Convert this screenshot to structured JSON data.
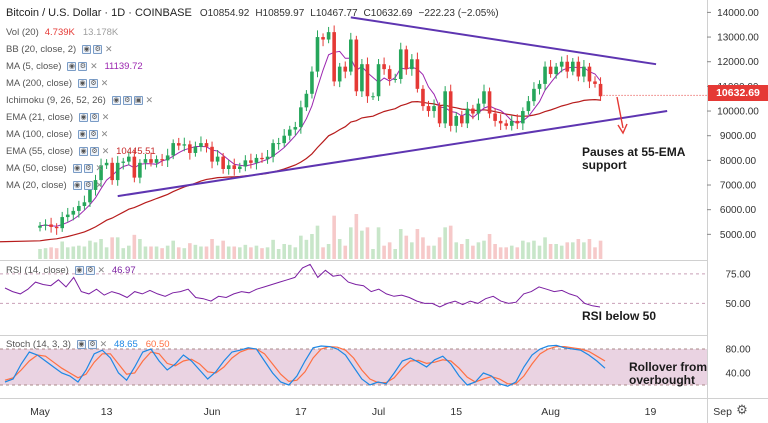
{
  "header": {
    "symbol": "Bitcoin / U.S. Dollar · 1D · COINBASE",
    "open": "O10854.92",
    "high": "H10859.97",
    "low": "L10467.77",
    "close": "C10632.69",
    "change": "−222.23 (−2.05%)"
  },
  "indicators": [
    {
      "name": "Vol (20)",
      "value": "4.739K",
      "value2": "13.178K",
      "color": "#e53935",
      "color2": "#9e9e9e",
      "icons": 0
    },
    {
      "name": "BB (20, close, 2)",
      "value": "",
      "color": "#555",
      "icons": 2
    },
    {
      "name": "MA (5, close)",
      "value": "11139.72",
      "color": "#9c27b0",
      "icons": 2
    },
    {
      "name": "MA (200, close)",
      "value": "",
      "color": "#555",
      "icons": 2
    },
    {
      "name": "Ichimoku (9, 26, 52, 26)",
      "value": "",
      "color": "#555",
      "icons": 3
    },
    {
      "name": "EMA (21, close)",
      "value": "",
      "color": "#555",
      "icons": 2
    },
    {
      "name": "MA (100, close)",
      "value": "",
      "color": "#555",
      "icons": 2
    },
    {
      "name": "EMA (55, close)",
      "value": "10445.51",
      "color": "#c62828",
      "icons": 2
    },
    {
      "name": "MA (50, close)",
      "value": "",
      "color": "#555",
      "icons": 2
    },
    {
      "name": "MA (20, close)",
      "value": "",
      "color": "#555",
      "icons": 2
    }
  ],
  "price_tag": "10632.69",
  "annotations": {
    "ema_note_line1": "Pauses at 55-EMA",
    "ema_note_line2": "support",
    "rsi_note": "RSI below 50",
    "stoch_note_line1": "Rollover from",
    "stoch_note_line2": "overbought"
  },
  "rsi": {
    "label": "RSI (14, close)",
    "value": "46.97",
    "color": "#7b1fa2"
  },
  "stoch": {
    "label": "Stoch (14, 3, 3)",
    "k_value": "48.65",
    "d_value": "60.50",
    "k_color": "#1e88e5",
    "d_color": "#ff7043"
  },
  "chart_data": {
    "type": "line",
    "title": "Bitcoin / U.S. Dollar · 1D · COINBASE",
    "price_axis": {
      "ticks": [
        5000,
        6000,
        7000,
        8000,
        9000,
        10000,
        11000,
        12000,
        13000,
        14000
      ],
      "ylim": [
        4000,
        14300
      ]
    },
    "rsi_axis": {
      "ticks": [
        50,
        75
      ],
      "ylim": [
        25,
        85
      ]
    },
    "stoch_axis": {
      "ticks": [
        40,
        80
      ],
      "ylim": [
        0,
        100
      ]
    },
    "x_ticks": [
      "May",
      "13",
      "Jun",
      "17",
      "Jul",
      "15",
      "Aug",
      "19",
      "Sep"
    ],
    "x_tick_days": [
      0,
      12,
      31,
      47,
      61,
      75,
      92,
      110,
      123
    ],
    "dates_first_day": "May 1",
    "close": [
      5350,
      5400,
      5300,
      5250,
      5700,
      5800,
      5950,
      6150,
      6300,
      6800,
      7200,
      7800,
      7900,
      7200,
      7900,
      7950,
      8150,
      7300,
      7900,
      8050,
      7900,
      8050,
      8000,
      8200,
      8700,
      8600,
      8650,
      8300,
      8550,
      8700,
      8550,
      7950,
      8150,
      7650,
      7800,
      7650,
      7750,
      8000,
      7900,
      8100,
      8050,
      8150,
      8700,
      8700,
      9000,
      9250,
      9350,
      10150,
      10700,
      11600,
      13000,
      12900,
      13200,
      11200,
      11800,
      11600,
      12900,
      10800,
      11900,
      10600,
      10600,
      11900,
      11700,
      11300,
      11300,
      12500,
      11700,
      12100,
      10900,
      10200,
      10000,
      10200,
      9500,
      10800,
      9400,
      9800,
      9500,
      10100,
      9900,
      10300,
      10800,
      9900,
      9600,
      9500,
      9400,
      9600,
      9500,
      10000,
      10400,
      10900,
      11100,
      11800,
      11500,
      11800,
      12000,
      11600,
      12000,
      11400,
      11800,
      11200,
      11100,
      10600
    ],
    "ema55_start_end": [
      4700,
      10445.51
    ],
    "trendlines": [
      {
        "name": "upper",
        "from": {
          "day": 56,
          "price": 13800
        },
        "to": {
          "day": 111,
          "price": 11900
        }
      },
      {
        "name": "lower",
        "from": {
          "day": 14,
          "price": 6550
        },
        "to": {
          "day": 113,
          "price": 10000
        }
      }
    ],
    "rsi_values": [
      63,
      60,
      58,
      62,
      68,
      66,
      65,
      70,
      64,
      72,
      60,
      58,
      62,
      57,
      60,
      58,
      55,
      60,
      58,
      61,
      58,
      56,
      59,
      60,
      62,
      55,
      54,
      52,
      56,
      55,
      58,
      60,
      59,
      62,
      64,
      66,
      68,
      70,
      72,
      80,
      83,
      72,
      78,
      73,
      74,
      68,
      66,
      65,
      60,
      62,
      58,
      56,
      57,
      55,
      52,
      50,
      50,
      47,
      50,
      52,
      49,
      52,
      50,
      54,
      56,
      52,
      50,
      51,
      58,
      60,
      64,
      62,
      60,
      61,
      58,
      56,
      50,
      48,
      47
    ],
    "stoch_k": [
      25,
      30,
      55,
      75,
      70,
      60,
      50,
      40,
      35,
      25,
      45,
      72,
      78,
      65,
      40,
      28,
      50,
      75,
      80,
      60,
      45,
      55,
      70,
      60,
      45,
      30,
      42,
      60,
      75,
      78,
      82,
      80,
      60,
      40,
      25,
      20,
      35,
      60,
      82,
      85,
      84,
      80,
      70,
      50,
      30,
      20,
      25,
      22,
      40,
      60,
      65,
      58,
      50,
      62,
      68,
      55,
      35,
      20,
      25,
      40,
      35,
      22,
      18,
      25,
      50,
      70,
      80,
      85,
      86,
      82,
      80,
      78,
      70,
      60,
      48
    ],
    "stoch_d": [
      28,
      32,
      45,
      60,
      70,
      68,
      58,
      48,
      40,
      32,
      38,
      58,
      72,
      72,
      55,
      38,
      40,
      60,
      75,
      72,
      56,
      52,
      60,
      63,
      55,
      42,
      40,
      50,
      65,
      75,
      80,
      80,
      72,
      55,
      38,
      26,
      28,
      42,
      65,
      80,
      84,
      83,
      78,
      65,
      45,
      30,
      24,
      24,
      32,
      48,
      60,
      61,
      56,
      58,
      62,
      60,
      48,
      33,
      25,
      30,
      34,
      30,
      22,
      22,
      35,
      55,
      72,
      80,
      84,
      84,
      82,
      80,
      76,
      68,
      60
    ]
  }
}
